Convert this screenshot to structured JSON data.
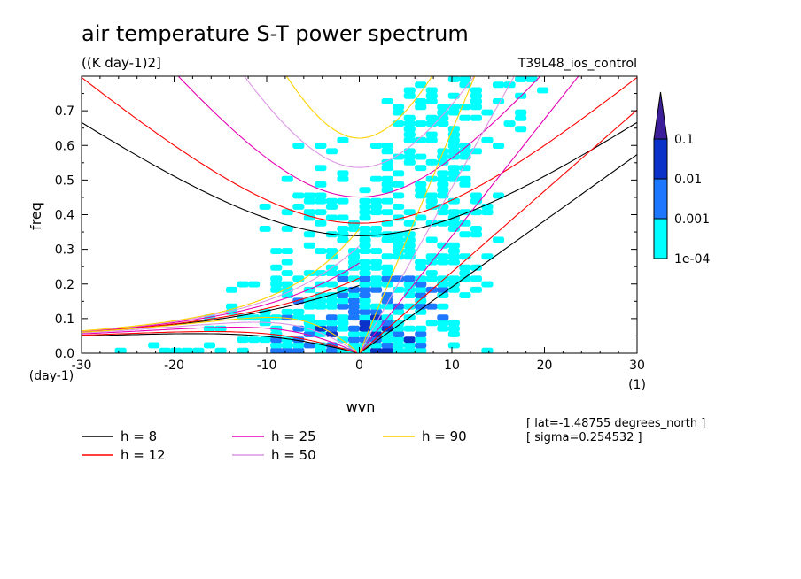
{
  "chart_data": {
    "type": "heatmap",
    "title": "air temperature S-T power spectrum",
    "units": "((K day-1)2]",
    "run_label": "T39L48_ios_control",
    "xlabel": "wvn",
    "ylabel": "freq",
    "x_unit": "(1)",
    "y_unit": "(day-1)",
    "xlim": [
      -30,
      30
    ],
    "ylim": [
      0,
      0.8
    ],
    "x_ticks": [
      "-30",
      "-20",
      "-10",
      "0",
      "10",
      "20",
      "30"
    ],
    "y_ticks": [
      "0.0",
      "0.1",
      "0.2",
      "0.3",
      "0.4",
      "0.5",
      "0.6",
      "0.7"
    ],
    "colorbar": {
      "labels": [
        "1e-04",
        "0.001",
        "0.01",
        "0.1"
      ],
      "colors": [
        "#00ffff",
        "#1e78ff",
        "#0a32c8",
        "#3c1e9a"
      ]
    },
    "dispersion_curves": [
      {
        "label": "h =  8",
        "h": 8,
        "color": "#000000"
      },
      {
        "label": "h = 12",
        "h": 12,
        "color": "#ff0000"
      },
      {
        "label": "h = 25",
        "h": 25,
        "color": "#e600b4"
      },
      {
        "label": "h = 50",
        "h": 50,
        "color": "#dc96e6"
      },
      {
        "label": "h = 90",
        "h": 90,
        "color": "#ffd200"
      }
    ],
    "info_lines": [
      "[ lat=-1.48755 degrees_north ]",
      "[ sigma=0.254532 ]"
    ]
  }
}
